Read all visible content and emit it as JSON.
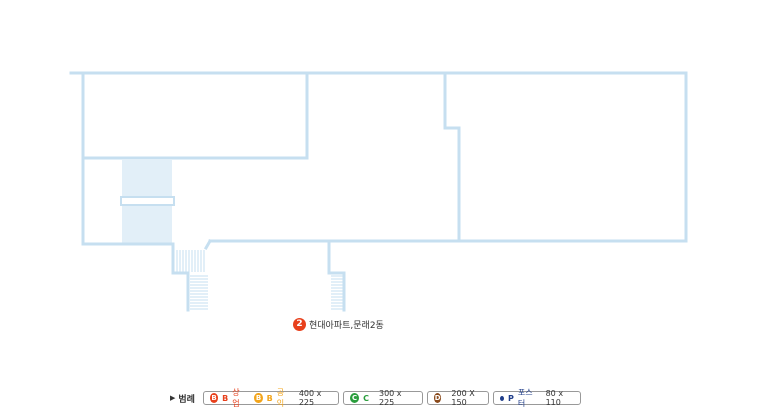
{
  "station": {
    "number": "2",
    "label": "현대아파트,문래2동"
  },
  "legend": {
    "title": "범례",
    "items": [
      {
        "key": "b",
        "badge": "B",
        "letter": "B",
        "text": "상업",
        "color": "#e8401c",
        "badge2": "B",
        "letter2": "B",
        "text2": "공익",
        "color2": "#f3a51b",
        "size": "400 x 225"
      },
      {
        "key": "c",
        "badge": "C",
        "letter": "C",
        "color": "#2a9d3c",
        "size": "300 x 225"
      },
      {
        "key": "d",
        "badge": "D",
        "color": "#8a4a1c",
        "size": "200 X 150"
      },
      {
        "key": "p",
        "letter": "P",
        "text": "포스터",
        "color": "#1f3d8a",
        "size": "80 x 110"
      }
    ]
  },
  "colors": {
    "wall": "#c6dff0",
    "station": "#e8401c"
  }
}
